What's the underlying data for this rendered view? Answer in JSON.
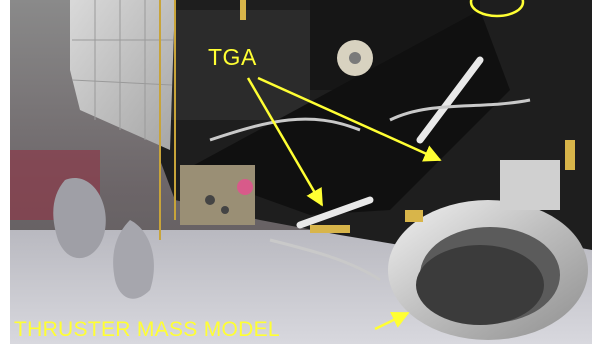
{
  "image": {
    "description_icon": "photo-icon"
  },
  "annotations": {
    "tga_label": "TGA",
    "thruster_mass_model_label": "THRUSTER MASS MODEL",
    "annotation_color": "#ffff33"
  }
}
